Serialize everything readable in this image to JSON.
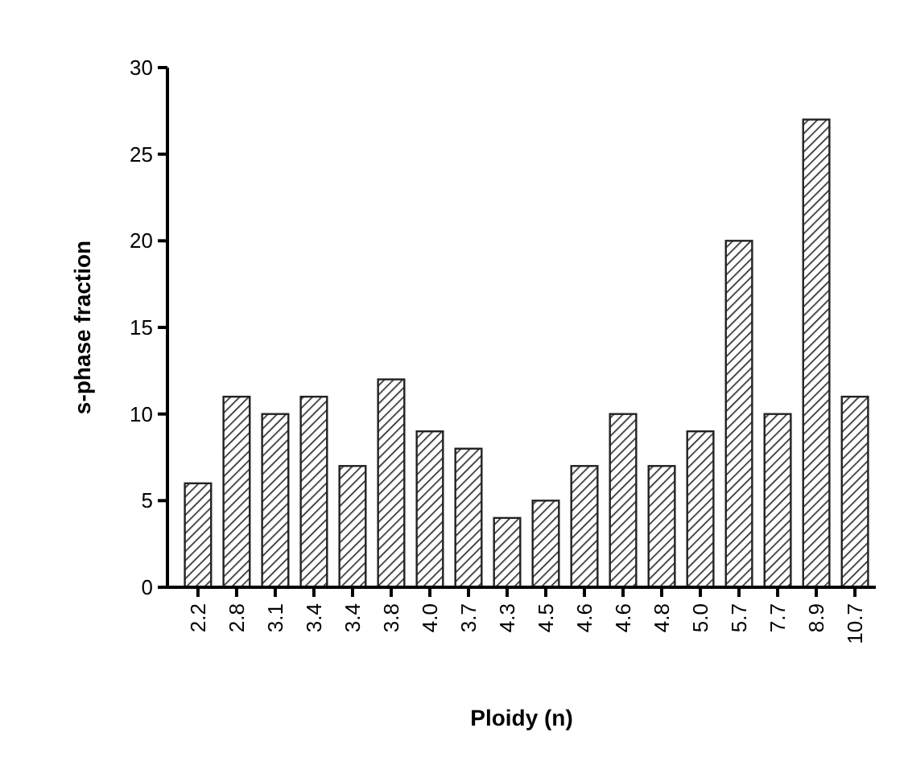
{
  "chart_data": {
    "type": "bar",
    "xlabel": "Ploidy (n)",
    "ylabel": "s-phase fraction",
    "categories": [
      "2.2",
      "2.8",
      "3.1",
      "3.4",
      "3.4",
      "3.8",
      "4.0",
      "3.7",
      "4.3",
      "4.5",
      "4.6",
      "4.6",
      "4.8",
      "5.0",
      "5.7",
      "7.7",
      "8.9",
      "10.7"
    ],
    "values": [
      6,
      11,
      10,
      11,
      7,
      12,
      9,
      8,
      4,
      5,
      7,
      10,
      7,
      9,
      20,
      10,
      27,
      11
    ],
    "color": "#222222",
    "ylim": [
      0,
      30
    ],
    "yticks": [
      0,
      5,
      10,
      15,
      20,
      25,
      30
    ],
    "grid": false
  }
}
